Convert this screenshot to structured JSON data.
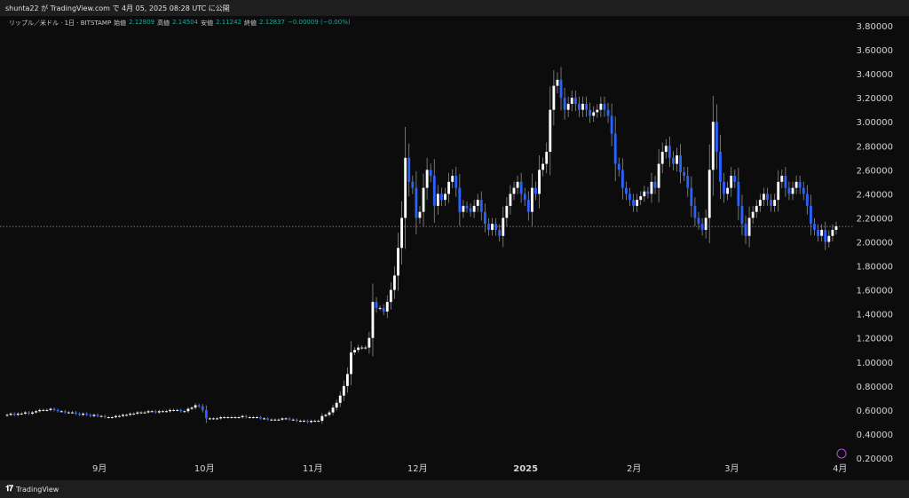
{
  "header": {
    "published_line": "shunta22 が TradingView.com で 4月 05, 2025 08:28 UTC に公開"
  },
  "legend": {
    "symbol": "リップル／米ドル · 1日 · BITSTAMP",
    "open_label": "始値",
    "open_value": "2.12809",
    "high_label": "高値",
    "high_value": "2.14504",
    "low_label": "安値",
    "low_value": "2.11242",
    "close_label": "終値",
    "close_value": "2.12837",
    "change": "−0.00009 (−0.00%)"
  },
  "footer": {
    "brand": "TradingView",
    "brand_icon": "tradingview-logo-icon"
  },
  "colors": {
    "background": "#0c0c0c",
    "up": "#ffffff",
    "down": "#2962ff",
    "wick": "#8d8d8d",
    "price_line": "#9a9a9a"
  },
  "chart_data": {
    "type": "candlestick",
    "x_range": [
      "2024-08-05",
      "2025-04-05"
    ],
    "y_range": [
      0.2,
      3.8
    ],
    "y_ticks": [
      "3.80000",
      "3.60000",
      "3.40000",
      "3.20000",
      "3.00000",
      "2.80000",
      "2.60000",
      "2.40000",
      "2.20000",
      "2.00000",
      "1.80000",
      "1.60000",
      "1.40000",
      "1.20000",
      "1.00000",
      "0.80000",
      "0.60000",
      "0.40000",
      "0.20000"
    ],
    "x_ticks": [
      {
        "label": "9月",
        "date": "2024-09-01",
        "bold": false
      },
      {
        "label": "10月",
        "date": "2024-10-01",
        "bold": false
      },
      {
        "label": "11月",
        "date": "2024-11-01",
        "bold": false
      },
      {
        "label": "12月",
        "date": "2024-12-01",
        "bold": false
      },
      {
        "label": "2025",
        "date": "2025-01-01",
        "bold": true
      },
      {
        "label": "2月",
        "date": "2025-02-01",
        "bold": false
      },
      {
        "label": "3月",
        "date": "2025-03-01",
        "bold": false
      },
      {
        "label": "4月",
        "date": "2025-04-01",
        "bold": false
      }
    ],
    "last_close": 2.12837,
    "closes": [
      0.56,
      0.57,
      0.56,
      0.57,
      0.57,
      0.58,
      0.57,
      0.58,
      0.59,
      0.6,
      0.6,
      0.6,
      0.61,
      0.6,
      0.59,
      0.59,
      0.58,
      0.58,
      0.58,
      0.57,
      0.56,
      0.57,
      0.56,
      0.55,
      0.56,
      0.55,
      0.55,
      0.54,
      0.54,
      0.54,
      0.55,
      0.55,
      0.56,
      0.56,
      0.57,
      0.57,
      0.58,
      0.58,
      0.58,
      0.59,
      0.59,
      0.58,
      0.59,
      0.59,
      0.59,
      0.6,
      0.6,
      0.6,
      0.59,
      0.59,
      0.61,
      0.62,
      0.64,
      0.63,
      0.6,
      0.53,
      0.53,
      0.53,
      0.53,
      0.54,
      0.54,
      0.54,
      0.54,
      0.54,
      0.54,
      0.55,
      0.54,
      0.54,
      0.54,
      0.54,
      0.53,
      0.53,
      0.52,
      0.52,
      0.52,
      0.52,
      0.53,
      0.53,
      0.52,
      0.52,
      0.51,
      0.51,
      0.51,
      0.5,
      0.51,
      0.51,
      0.51,
      0.55,
      0.56,
      0.58,
      0.62,
      0.66,
      0.72,
      0.8,
      0.9,
      1.08,
      1.1,
      1.12,
      1.12,
      1.12,
      1.2,
      1.5,
      1.45,
      1.45,
      1.42,
      1.5,
      1.6,
      1.72,
      1.95,
      2.2,
      2.7,
      2.5,
      2.45,
      2.2,
      2.25,
      2.45,
      2.6,
      2.55,
      2.3,
      2.4,
      2.35,
      2.4,
      2.5,
      2.55,
      2.45,
      2.25,
      2.3,
      2.28,
      2.25,
      2.3,
      2.35,
      2.25,
      2.15,
      2.1,
      2.15,
      2.1,
      2.05,
      2.2,
      2.3,
      2.4,
      2.45,
      2.5,
      2.4,
      2.35,
      2.25,
      2.45,
      2.4,
      2.6,
      2.65,
      2.75,
      3.1,
      3.3,
      3.35,
      3.2,
      3.1,
      3.15,
      3.2,
      3.15,
      3.1,
      3.15,
      3.1,
      3.05,
      3.08,
      3.1,
      3.15,
      3.1,
      3.05,
      2.9,
      2.65,
      2.6,
      2.45,
      2.4,
      2.35,
      2.3,
      2.35,
      2.38,
      2.42,
      2.4,
      2.5,
      2.45,
      2.65,
      2.75,
      2.8,
      2.7,
      2.65,
      2.72,
      2.58,
      2.55,
      2.45,
      2.3,
      2.2,
      2.15,
      2.1,
      2.2,
      2.6,
      3.0,
      2.75,
      2.5,
      2.4,
      2.45,
      2.55,
      2.5,
      2.3,
      2.15,
      2.05,
      2.2,
      2.25,
      2.3,
      2.35,
      2.4,
      2.35,
      2.3,
      2.35,
      2.5,
      2.55,
      2.45,
      2.4,
      2.45,
      2.5,
      2.45,
      2.4,
      2.3,
      2.15,
      2.1,
      2.05,
      2.1,
      2.0,
      2.05,
      2.1,
      2.13
    ]
  }
}
